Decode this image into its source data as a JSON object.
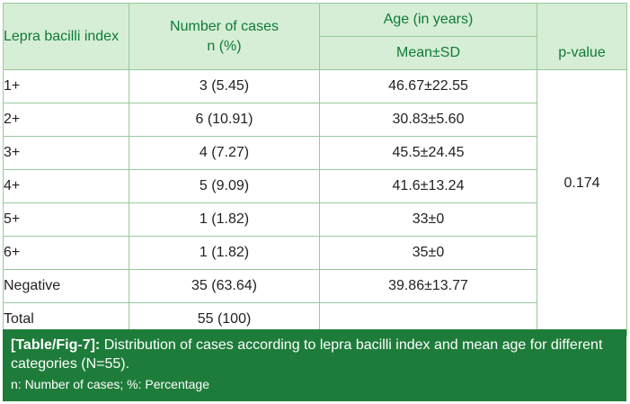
{
  "table": {
    "headers": {
      "index": "Lepra bacilli index",
      "cases_line1": "Number of cases",
      "cases_line2": "n (%)",
      "age": "Age (in years)",
      "age_sub": "Mean±SD",
      "p": "p-value"
    },
    "rows": [
      {
        "index": "1+",
        "cases": "3 (5.45)",
        "age": "46.67±22.55"
      },
      {
        "index": "2+",
        "cases": "6 (10.91)",
        "age": "30.83±5.60"
      },
      {
        "index": "3+",
        "cases": "4 (7.27)",
        "age": "45.5±24.45"
      },
      {
        "index": "4+",
        "cases": "5 (9.09)",
        "age": "41.6±13.24"
      },
      {
        "index": "5+",
        "cases": "1 (1.82)",
        "age": "33±0"
      },
      {
        "index": "6+",
        "cases": "1 (1.82)",
        "age": "35±0"
      },
      {
        "index": "Negative",
        "cases": "35 (63.64)",
        "age": "39.86±13.77"
      },
      {
        "index": "Total",
        "cases": "55 (100)",
        "age": ""
      }
    ],
    "p_value": "0.174"
  },
  "caption": {
    "label": "[Table/Fig-7]:",
    "text": "Distribution of cases according to lepra bacilli index and mean age for different categories (N=55).",
    "note": "n: Number of cases; %: Percentage"
  },
  "colors": {
    "header_bg": "#d6eed5",
    "header_text": "#0f7a3a",
    "border": "#9bc89c",
    "caption_bg": "#1e7c3a"
  }
}
